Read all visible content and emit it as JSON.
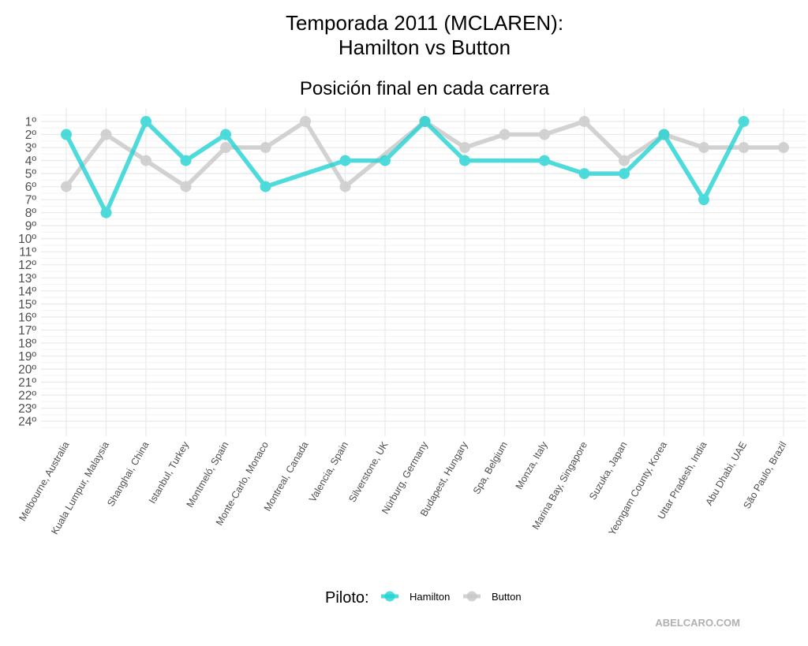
{
  "chart_data": {
    "type": "line",
    "title_lines": [
      "Temporada 2011 (MCLAREN):",
      "Hamilton vs Button"
    ],
    "subtitle": "Posición final en cada carrera",
    "xlabel": "",
    "ylabel": "",
    "categories": [
      "Melbourne, Australia",
      "Kuala Lumpur, Malaysia",
      "Shanghai, China",
      "Istanbul, Turkey",
      "Montmeló, Spain",
      "Monte-Carlo, Monaco",
      "Montreal, Canada",
      "Valencia, Spain",
      "Silverstone, UK",
      "Nürburg, Germany",
      "Budapest, Hungary",
      "Spa, Belgium",
      "Monza, Italy",
      "Marina Bay, Singapore",
      "Suzuka, Japan",
      "Yeongam County, Korea",
      "Uttar Pradesh, India",
      "Abu Dhabi, UAE",
      "São Paulo, Brazil"
    ],
    "y_reversed": true,
    "ylim": [
      1,
      24
    ],
    "y_ticks": [
      "1º",
      "2º",
      "3º",
      "4º",
      "5º",
      "6º",
      "7º",
      "8º",
      "9º",
      "10º",
      "11º",
      "12º",
      "13º",
      "14º",
      "15º",
      "16º",
      "17º",
      "18º",
      "19º",
      "20º",
      "21º",
      "22º",
      "23º",
      "24º"
    ],
    "grid": true,
    "series": [
      {
        "name": "Hamilton",
        "color": "#22d3d3",
        "values": [
          2,
          8,
          1,
          4,
          2,
          6,
          null,
          4,
          4,
          1,
          4,
          null,
          4,
          5,
          5,
          2,
          7,
          1,
          null
        ]
      },
      {
        "name": "Button",
        "color": "#c8c8c8",
        "values": [
          6,
          2,
          4,
          6,
          3,
          3,
          1,
          6,
          null,
          1,
          3,
          2,
          2,
          1,
          4,
          2,
          3,
          3,
          3
        ]
      }
    ],
    "legend": {
      "title": "Piloto:",
      "position": "bottom"
    }
  },
  "watermark": "ABELCARO.COM"
}
